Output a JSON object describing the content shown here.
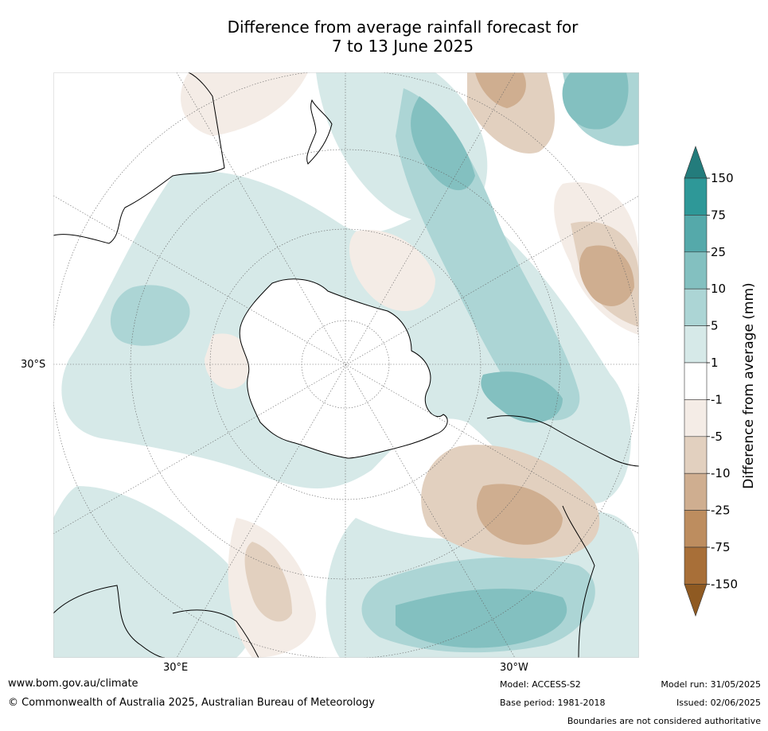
{
  "title": {
    "line1": "Difference from average rainfall forecast for",
    "line2": "7 to 13 June 2025"
  },
  "map": {
    "projection": "south-polar-stereographic",
    "lat_label": "30°S",
    "lon_labels": [
      "30°E",
      "30°W"
    ]
  },
  "legend": {
    "label": "Difference from average (mm)",
    "ticks": [
      "150",
      "75",
      "25",
      "10",
      "5",
      "1",
      "-1",
      "-5",
      "-10",
      "-25",
      "-75",
      "-150"
    ],
    "colors": [
      "#237c7c",
      "#2e9898",
      "#55a9aa",
      "#83c0c0",
      "#acd5d5",
      "#d6e9e8",
      "#ffffff",
      "#f4ece6",
      "#e2d0bf",
      "#cfae90",
      "#bd8d5f",
      "#a86f38",
      "#8f5a22"
    ]
  },
  "footer": {
    "url": "www.bom.gov.au/climate",
    "copyright": "© Commonwealth of Australia 2025, Australian Bureau of Meteorology",
    "model": "Model: ACCESS-S2",
    "base_period": "Base period: 1981-2018",
    "model_run": "Model run: 31/05/2025",
    "issued": "Issued: 02/06/2025",
    "disclaimer": "Boundaries are not considered authoritative"
  }
}
